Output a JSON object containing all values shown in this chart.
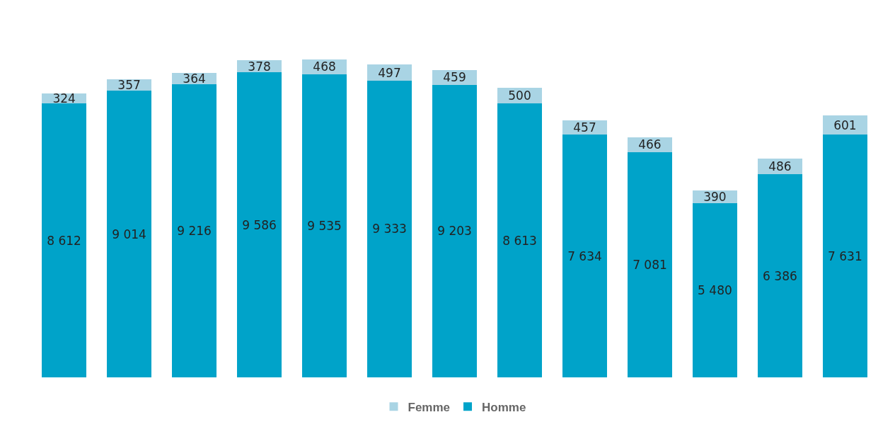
{
  "chart_data": {
    "type": "bar",
    "stacked": true,
    "categories": [
      null,
      null,
      null,
      null,
      null,
      null,
      null,
      null,
      null,
      null,
      null,
      null,
      null
    ],
    "series": [
      {
        "name": "Homme",
        "color": "#00a3c9",
        "values": [
          8612,
          9014,
          9216,
          9586,
          9535,
          9333,
          9203,
          8613,
          7634,
          7081,
          5480,
          6386,
          7631
        ],
        "value_labels": [
          "8 612",
          "9 014",
          "9 216",
          "9 586",
          "9 535",
          "9 333",
          "9 203",
          "8 613",
          "7 634",
          "7 081",
          "5 480",
          "6 386",
          "7 631"
        ]
      },
      {
        "name": "Femme",
        "color": "#a9d4e4",
        "values": [
          324,
          357,
          364,
          378,
          468,
          497,
          459,
          500,
          457,
          466,
          390,
          486,
          601
        ],
        "value_labels": [
          "324",
          "357",
          "364",
          "378",
          "468",
          "497",
          "459",
          "500",
          "457",
          "466",
          "390",
          "486",
          "601"
        ]
      }
    ],
    "legend": "bottom",
    "tick_labels": false
  }
}
